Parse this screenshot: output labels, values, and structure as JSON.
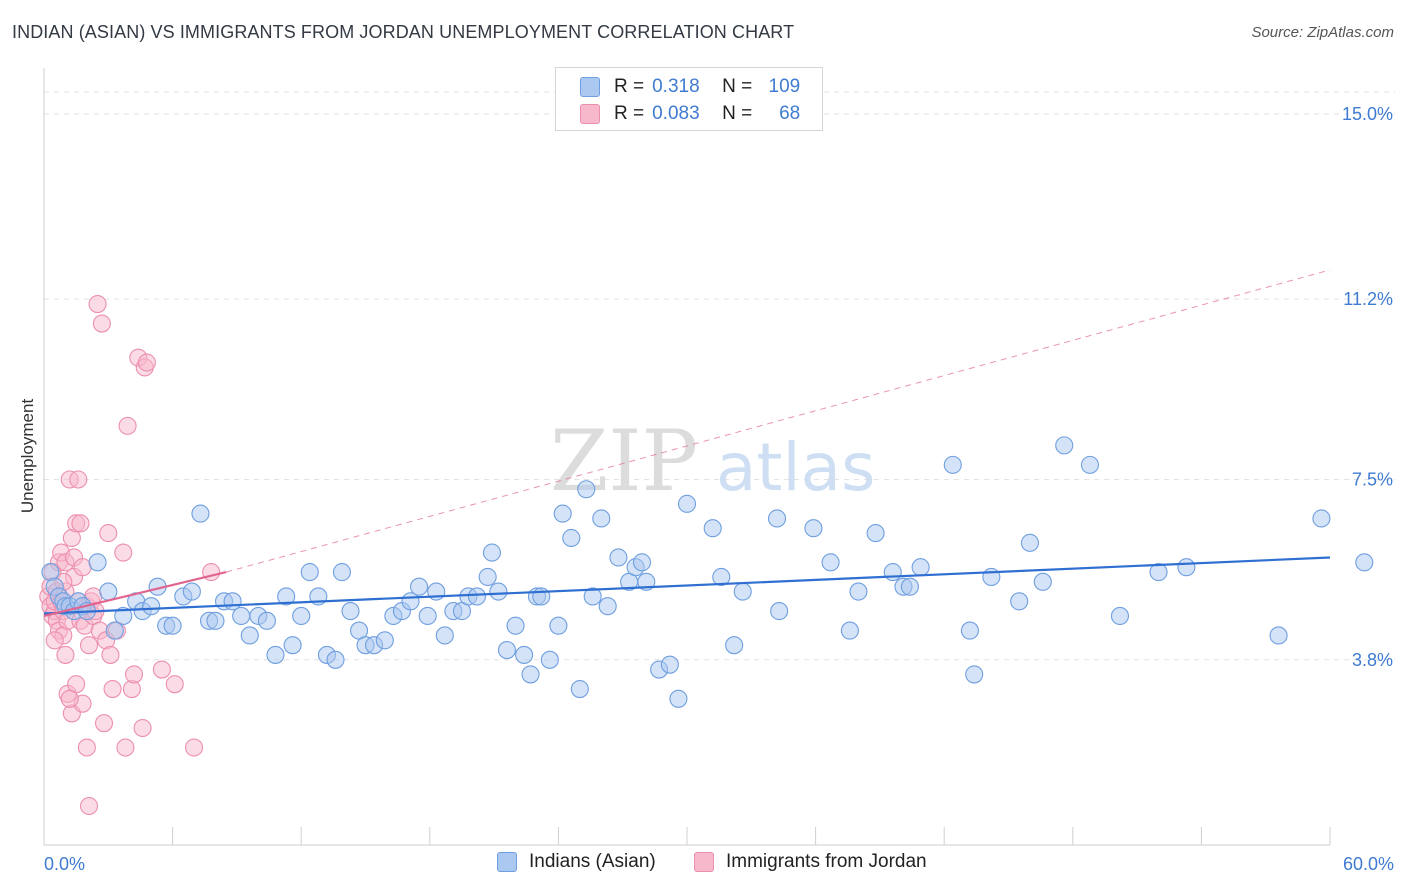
{
  "title": "INDIAN (ASIAN) VS IMMIGRANTS FROM JORDAN UNEMPLOYMENT CORRELATION CHART",
  "source": "Source: ZipAtlas.com",
  "watermark": {
    "zip": "ZIP",
    "atlas": "atlas"
  },
  "legend": {
    "r_label": "R =",
    "n_label": "N =",
    "rows": [
      {
        "r": "0.318",
        "n": "109"
      },
      {
        "r": "0.083",
        "n": "68"
      }
    ]
  },
  "colors": {
    "blue_fill": "#aac8f0",
    "blue_stroke": "#6f9fe0",
    "blue_line": "#2f6fd1",
    "pink_fill": "#f7b8cc",
    "pink_stroke": "#ec8fae",
    "pink_line": "#e06690",
    "grid": "#e2e2e2",
    "tick_text": "#3f7bd1"
  },
  "chart_data": {
    "type": "scatter",
    "title": "INDIAN (ASIAN) VS IMMIGRANTS FROM JORDAN UNEMPLOYMENT CORRELATION CHART",
    "xlabel": "",
    "ylabel": "Unemployment",
    "xlim": [
      0,
      60
    ],
    "ylim": [
      0,
      15.8
    ],
    "x_tick_labels": [
      "0.0%",
      "60.0%"
    ],
    "y_ticks": [
      3.8,
      7.5,
      11.2,
      15.0
    ],
    "y_tick_labels": [
      "3.8%",
      "7.5%",
      "11.2%",
      "15.0%"
    ],
    "grid": true,
    "series": [
      {
        "name": "Indians (Asian)",
        "color": "blue",
        "r": 0.318,
        "n": 109,
        "trend": {
          "x": [
            0,
            60
          ],
          "y": [
            4.75,
            5.9
          ],
          "style": "solid"
        },
        "points": [
          [
            0.3,
            5.6
          ],
          [
            0.5,
            5.3
          ],
          [
            0.7,
            5.1
          ],
          [
            0.9,
            5.0
          ],
          [
            1.0,
            4.9
          ],
          [
            1.2,
            4.9
          ],
          [
            1.4,
            4.8
          ],
          [
            1.6,
            5.0
          ],
          [
            1.8,
            4.9
          ],
          [
            2.0,
            4.8
          ],
          [
            2.5,
            5.8
          ],
          [
            3.0,
            5.2
          ],
          [
            3.3,
            4.4
          ],
          [
            3.7,
            4.7
          ],
          [
            4.3,
            5.0
          ],
          [
            4.6,
            4.8
          ],
          [
            5.0,
            4.9
          ],
          [
            5.3,
            5.3
          ],
          [
            5.7,
            4.5
          ],
          [
            6.0,
            4.5
          ],
          [
            6.5,
            5.1
          ],
          [
            6.9,
            5.2
          ],
          [
            7.3,
            6.8
          ],
          [
            7.7,
            4.6
          ],
          [
            8.0,
            4.6
          ],
          [
            8.4,
            5.0
          ],
          [
            8.8,
            5.0
          ],
          [
            9.2,
            4.7
          ],
          [
            9.6,
            4.3
          ],
          [
            10.0,
            4.7
          ],
          [
            10.4,
            4.6
          ],
          [
            10.8,
            3.9
          ],
          [
            11.3,
            5.1
          ],
          [
            11.6,
            4.1
          ],
          [
            12.0,
            4.7
          ],
          [
            12.4,
            5.6
          ],
          [
            12.8,
            5.1
          ],
          [
            13.2,
            3.9
          ],
          [
            13.6,
            3.8
          ],
          [
            13.9,
            5.6
          ],
          [
            14.3,
            4.8
          ],
          [
            14.7,
            4.4
          ],
          [
            15.0,
            4.1
          ],
          [
            15.4,
            4.1
          ],
          [
            15.9,
            4.2
          ],
          [
            16.3,
            4.7
          ],
          [
            16.7,
            4.8
          ],
          [
            17.1,
            5.0
          ],
          [
            17.5,
            5.3
          ],
          [
            17.9,
            4.7
          ],
          [
            18.3,
            5.2
          ],
          [
            18.7,
            4.3
          ],
          [
            19.1,
            4.8
          ],
          [
            19.5,
            4.8
          ],
          [
            19.8,
            5.1
          ],
          [
            20.2,
            5.1
          ],
          [
            20.7,
            5.5
          ],
          [
            20.9,
            6.0
          ],
          [
            21.2,
            5.2
          ],
          [
            21.6,
            4.0
          ],
          [
            22.0,
            4.5
          ],
          [
            22.4,
            3.9
          ],
          [
            22.7,
            3.5
          ],
          [
            23.0,
            5.1
          ],
          [
            23.2,
            5.1
          ],
          [
            23.6,
            3.8
          ],
          [
            24.0,
            4.5
          ],
          [
            24.2,
            6.8
          ],
          [
            24.6,
            6.3
          ],
          [
            25.0,
            3.2
          ],
          [
            25.3,
            7.3
          ],
          [
            25.6,
            5.1
          ],
          [
            26.0,
            6.7
          ],
          [
            26.3,
            4.9
          ],
          [
            26.8,
            5.9
          ],
          [
            27.3,
            5.4
          ],
          [
            27.6,
            5.7
          ],
          [
            27.9,
            5.8
          ],
          [
            28.1,
            5.4
          ],
          [
            28.7,
            3.6
          ],
          [
            29.2,
            3.7
          ],
          [
            29.6,
            3.0
          ],
          [
            30.0,
            7.0
          ],
          [
            31.2,
            6.5
          ],
          [
            31.6,
            5.5
          ],
          [
            32.2,
            4.1
          ],
          [
            32.6,
            5.2
          ],
          [
            34.2,
            6.7
          ],
          [
            34.3,
            4.8
          ],
          [
            35.9,
            6.5
          ],
          [
            36.7,
            5.8
          ],
          [
            37.6,
            4.4
          ],
          [
            38.0,
            5.2
          ],
          [
            38.8,
            6.4
          ],
          [
            39.6,
            5.6
          ],
          [
            40.1,
            5.3
          ],
          [
            40.4,
            5.3
          ],
          [
            40.9,
            5.7
          ],
          [
            42.4,
            7.8
          ],
          [
            43.2,
            4.4
          ],
          [
            43.4,
            3.5
          ],
          [
            44.2,
            5.5
          ],
          [
            45.5,
            5.0
          ],
          [
            46.0,
            6.2
          ],
          [
            46.6,
            5.4
          ],
          [
            47.6,
            8.2
          ],
          [
            48.8,
            7.8
          ],
          [
            50.2,
            4.7
          ],
          [
            52.0,
            5.6
          ],
          [
            53.3,
            5.7
          ],
          [
            57.6,
            4.3
          ],
          [
            59.6,
            6.7
          ],
          [
            61.6,
            5.8
          ]
        ]
      },
      {
        "name": "Immigrants from Jordan",
        "color": "pink",
        "r": 0.083,
        "n": 68,
        "trend": {
          "x": [
            0,
            8.5
          ],
          "y": [
            4.7,
            5.6
          ],
          "style": "solid",
          "dashed_extension": {
            "x": [
              8.5,
              60
            ],
            "y": [
              5.6,
              11.8
            ]
          }
        },
        "points": [
          [
            0.2,
            5.1
          ],
          [
            0.3,
            4.9
          ],
          [
            0.3,
            5.3
          ],
          [
            0.4,
            4.7
          ],
          [
            0.4,
            5.6
          ],
          [
            0.5,
            4.8
          ],
          [
            0.5,
            5.0
          ],
          [
            0.6,
            4.6
          ],
          [
            0.6,
            5.2
          ],
          [
            0.7,
            5.8
          ],
          [
            0.7,
            4.4
          ],
          [
            0.8,
            6.0
          ],
          [
            0.8,
            5.0
          ],
          [
            0.9,
            4.8
          ],
          [
            0.9,
            4.3
          ],
          [
            1.0,
            5.2
          ],
          [
            1.0,
            5.8
          ],
          [
            1.1,
            4.6
          ],
          [
            1.1,
            3.1
          ],
          [
            1.2,
            7.5
          ],
          [
            1.2,
            4.9
          ],
          [
            1.3,
            6.3
          ],
          [
            1.3,
            2.7
          ],
          [
            1.4,
            5.9
          ],
          [
            1.4,
            5.5
          ],
          [
            1.5,
            6.6
          ],
          [
            1.5,
            3.3
          ],
          [
            1.6,
            5.0
          ],
          [
            1.6,
            7.5
          ],
          [
            1.7,
            4.6
          ],
          [
            1.7,
            6.6
          ],
          [
            1.8,
            5.7
          ],
          [
            1.9,
            4.5
          ],
          [
            2.0,
            4.9
          ],
          [
            2.0,
            2.0
          ],
          [
            2.1,
            4.1
          ],
          [
            2.2,
            5.0
          ],
          [
            2.3,
            4.7
          ],
          [
            2.3,
            5.1
          ],
          [
            2.4,
            4.8
          ],
          [
            2.5,
            11.1
          ],
          [
            2.6,
            4.4
          ],
          [
            2.7,
            10.7
          ],
          [
            2.8,
            2.5
          ],
          [
            2.9,
            4.2
          ],
          [
            3.0,
            6.4
          ],
          [
            3.1,
            3.9
          ],
          [
            3.2,
            3.2
          ],
          [
            3.4,
            4.4
          ],
          [
            3.7,
            6.0
          ],
          [
            3.8,
            2.0
          ],
          [
            3.9,
            8.6
          ],
          [
            4.1,
            3.2
          ],
          [
            4.2,
            3.5
          ],
          [
            4.4,
            10.0
          ],
          [
            4.6,
            2.4
          ],
          [
            4.7,
            9.8
          ],
          [
            4.8,
            9.9
          ],
          [
            5.5,
            3.6
          ],
          [
            6.1,
            3.3
          ],
          [
            7.0,
            2.0
          ],
          [
            7.8,
            5.6
          ],
          [
            2.1,
            0.8
          ],
          [
            0.5,
            4.2
          ],
          [
            1.0,
            3.9
          ],
          [
            1.8,
            2.9
          ],
          [
            1.2,
            3.0
          ],
          [
            0.9,
            5.4
          ]
        ]
      }
    ]
  },
  "bottom_legend": [
    "Indians (Asian)",
    "Immigrants from Jordan"
  ]
}
